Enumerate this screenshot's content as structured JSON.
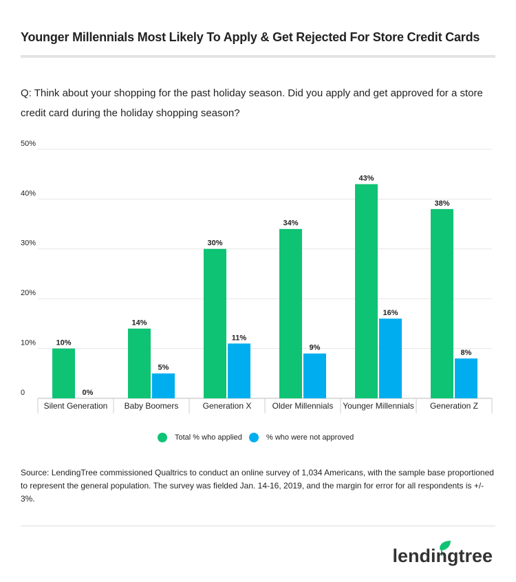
{
  "title": "Younger Millennials Most Likely To Apply & Get Rejected For Store Credit Cards",
  "question": "Q: Think about your shopping for the past holiday season. Did you apply and get approved for a store credit card during the holiday shopping season?",
  "chart_data": {
    "type": "bar",
    "categories": [
      "Silent Generation",
      "Baby Boomers",
      "Generation X",
      "Older Millennials",
      "Younger Millennials",
      "Generation Z"
    ],
    "series": [
      {
        "name": "Total % who applied",
        "color": "#0fc374",
        "values": [
          10,
          14,
          30,
          34,
          43,
          38
        ],
        "value_labels": [
          "10%",
          "14%",
          "30%",
          "34%",
          "43%",
          "38%"
        ]
      },
      {
        "name": "% who were not approved",
        "color": "#00aeef",
        "values": [
          0,
          5,
          11,
          9,
          16,
          8
        ],
        "value_labels": [
          "0%",
          "5%",
          "11%",
          "9%",
          "16%",
          "8%"
        ]
      }
    ],
    "ylim": [
      0,
      50
    ],
    "yticks": [
      0,
      {
        "value": 10,
        "label": "10%"
      },
      {
        "value": 20,
        "label": "20%"
      },
      {
        "value": 30,
        "label": "30%"
      },
      {
        "value": 40,
        "label": "40%"
      },
      {
        "value": 50,
        "label": "50%"
      }
    ],
    "grid": true,
    "legend": "bottom"
  },
  "source": "Source: LendingTree commissioned Qualtrics to conduct an online survey of 1,034 Americans, with the sample base proportioned to represent the general population. The survey was fielded Jan. 14-16, 2019, and the margin for error for all respondents is +/- 3%.",
  "logo": "lendingtree"
}
